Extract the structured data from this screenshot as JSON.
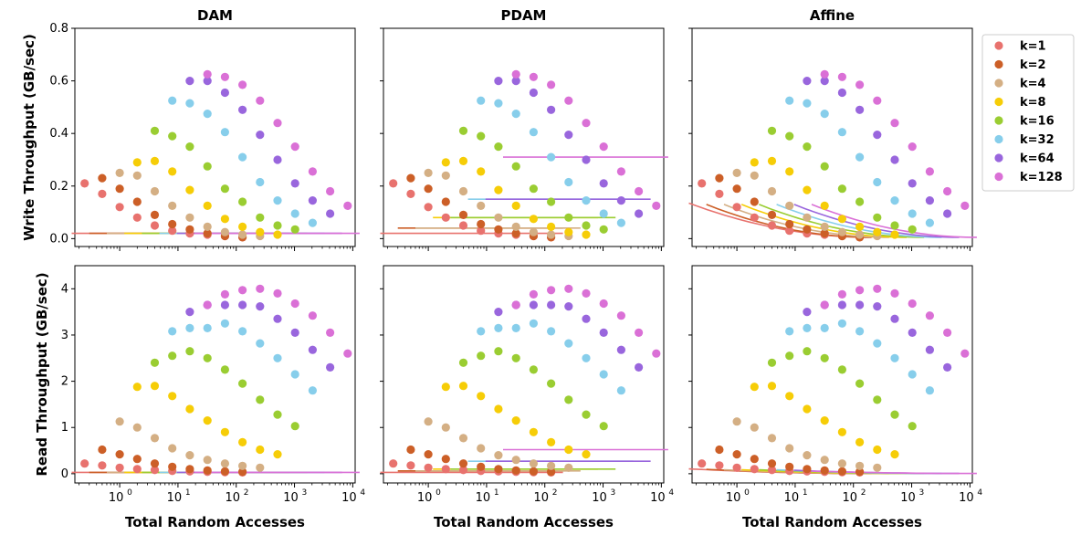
{
  "chart_data": {
    "type": "scatter",
    "x_scale": "log",
    "x_ticks": [
      {
        "value": 1,
        "label": "10",
        "exp": "0"
      },
      {
        "value": 10,
        "label": "10",
        "exp": "1"
      },
      {
        "value": 100,
        "label": "10",
        "exp": "2"
      },
      {
        "value": 1000,
        "label": "10",
        "exp": "3"
      },
      {
        "value": 10000,
        "label": "10",
        "exp": "4"
      }
    ],
    "xlabel": "Total Random Accesses",
    "rows": [
      {
        "ylabel": "Write Throughput (GB/sec)",
        "ylim": [
          -0.03,
          0.8
        ],
        "yticks": [
          {
            "value": 0.0,
            "label": "0.0"
          },
          {
            "value": 0.2,
            "label": "0.2"
          },
          {
            "value": 0.4,
            "label": "0.4"
          },
          {
            "value": 0.6,
            "label": "0.6"
          },
          {
            "value": 0.8,
            "label": "0.8"
          }
        ]
      },
      {
        "ylabel": "Read Throughput (GB/sec)",
        "ylim": [
          -0.2,
          4.5
        ],
        "yticks": [
          {
            "value": 0,
            "label": "0"
          },
          {
            "value": 1,
            "label": "1"
          },
          {
            "value": 2,
            "label": "2"
          },
          {
            "value": 3,
            "label": "3"
          },
          {
            "value": 4,
            "label": "4"
          }
        ]
      }
    ],
    "columns": [
      "DAM",
      "PDAM",
      "Affine"
    ],
    "series": [
      {
        "name": "k=1",
        "color": "#E8726E",
        "x": [
          0.25,
          0.5,
          1,
          2,
          4,
          8,
          16,
          32,
          64,
          128
        ],
        "write": [
          0.21,
          0.17,
          0.12,
          0.08,
          0.05,
          0.03,
          0.02,
          0.015,
          0.01,
          0.005
        ],
        "read": [
          0.22,
          0.18,
          0.13,
          0.1,
          0.08,
          0.06,
          0.05,
          0.04,
          0.035,
          0.03
        ]
      },
      {
        "name": "k=2",
        "color": "#CC5F27",
        "x": [
          0.5,
          1,
          2,
          4,
          8,
          16,
          32,
          64,
          128
        ],
        "write": [
          0.23,
          0.19,
          0.14,
          0.09,
          0.055,
          0.035,
          0.02,
          0.01,
          0.005
        ],
        "read": [
          0.52,
          0.42,
          0.32,
          0.22,
          0.15,
          0.1,
          0.07,
          0.05,
          0.04
        ]
      },
      {
        "name": "k=4",
        "color": "#D4AF84",
        "x": [
          1,
          2,
          4,
          8,
          16,
          32,
          64,
          128,
          256
        ],
        "write": [
          0.25,
          0.24,
          0.18,
          0.125,
          0.08,
          0.045,
          0.025,
          0.015,
          0.01
        ],
        "read": [
          1.13,
          1.0,
          0.77,
          0.55,
          0.4,
          0.3,
          0.22,
          0.17,
          0.13
        ]
      },
      {
        "name": "k=8",
        "color": "#F6CD07",
        "x": [
          2,
          4,
          8,
          16,
          32,
          64,
          128,
          256,
          512
        ],
        "write": [
          0.29,
          0.295,
          0.255,
          0.185,
          0.125,
          0.075,
          0.045,
          0.025,
          0.015
        ],
        "read": [
          1.88,
          1.9,
          1.68,
          1.4,
          1.15,
          0.9,
          0.68,
          0.52,
          0.42
        ]
      },
      {
        "name": "k=16",
        "color": "#9ACD32",
        "x": [
          4,
          8,
          16,
          32,
          64,
          128,
          256,
          512,
          1024
        ],
        "write": [
          0.41,
          0.39,
          0.35,
          0.275,
          0.19,
          0.14,
          0.08,
          0.05,
          0.035
        ],
        "read": [
          2.4,
          2.55,
          2.65,
          2.5,
          2.25,
          1.95,
          1.6,
          1.28,
          1.03
        ]
      },
      {
        "name": "k=32",
        "color": "#87CEEB",
        "x": [
          8,
          16,
          32,
          64,
          128,
          256,
          512,
          1024,
          2048
        ],
        "write": [
          0.525,
          0.515,
          0.475,
          0.405,
          0.31,
          0.215,
          0.145,
          0.095,
          0.06
        ],
        "read": [
          3.08,
          3.15,
          3.15,
          3.25,
          3.08,
          2.82,
          2.5,
          2.15,
          1.8
        ]
      },
      {
        "name": "k=64",
        "color": "#9966DD",
        "x": [
          16,
          32,
          64,
          128,
          256,
          512,
          1024,
          2048,
          4096
        ],
        "write": [
          0.6,
          0.6,
          0.555,
          0.49,
          0.395,
          0.3,
          0.21,
          0.145,
          0.095
        ],
        "read": [
          3.5,
          3.65,
          3.65,
          3.65,
          3.62,
          3.35,
          3.05,
          2.68,
          2.3
        ]
      },
      {
        "name": "k=128",
        "color": "#DA70D6",
        "x": [
          32,
          64,
          128,
          256,
          512,
          1024,
          2048,
          4096,
          8192
        ],
        "write": [
          0.625,
          0.615,
          0.585,
          0.525,
          0.44,
          0.35,
          0.255,
          0.18,
          0.125
        ],
        "read": [
          3.65,
          3.88,
          3.97,
          4.0,
          3.9,
          3.68,
          3.42,
          3.05,
          2.6
        ]
      }
    ],
    "model_lines": {
      "DAM": {
        "write": 0.02,
        "read": 0.03
      },
      "PDAM_write": [
        0.02,
        0.04,
        0.08,
        0.15,
        0.31
      ],
      "PDAM_read": [
        0.03,
        0.06,
        0.1,
        0.27,
        0.52
      ],
      "Affine_write_start": [
        0.13,
        0.125,
        0.125,
        0.125,
        0.125,
        0.125,
        0.125,
        0.125
      ],
      "Affine_read_start": [
        0.1,
        0.09,
        0.08,
        0.08,
        0.08,
        0.08,
        0.07,
        0.05
      ]
    }
  }
}
